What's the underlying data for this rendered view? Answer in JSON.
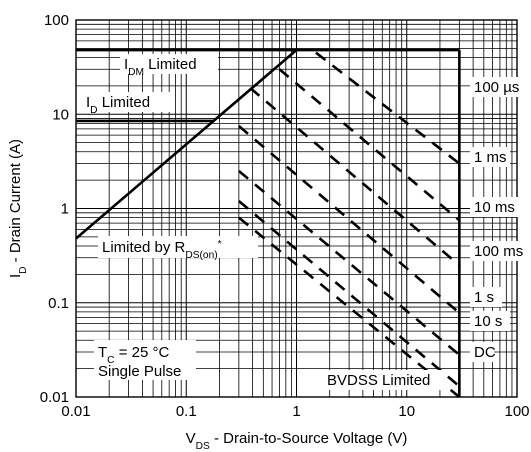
{
  "chart_data": {
    "type": "line",
    "title": "",
    "xlabel": "V<sub>DS</sub> - Drain-to-Source Voltage (V)",
    "xlabel_parts": [
      {
        "text": "V",
        "sub": false
      },
      {
        "text": "DS",
        "sub": true
      },
      {
        "text": " - Drain-to-Source Voltage (V)",
        "sub": false
      }
    ],
    "ylabel_parts": [
      {
        "text": "I",
        "sub": false
      },
      {
        "text": "D",
        "sub": true
      },
      {
        "text": " - Drain Current (A)",
        "sub": false
      }
    ],
    "x_scale": "log",
    "y_scale": "log",
    "xlim": [
      0.01,
      100
    ],
    "ylim": [
      0.01,
      100
    ],
    "x_ticks": [
      "0.01",
      "0.1",
      "1",
      "10",
      "100"
    ],
    "y_ticks": [
      "0.01",
      "0.1",
      "1",
      "10",
      "100"
    ],
    "grid": true,
    "boundary_series": [
      {
        "id": "rds-on",
        "points": [
          [
            0.01,
            0.48
          ],
          [
            1.0,
            48
          ]
        ]
      },
      {
        "id": "idm",
        "points": [
          [
            0.01,
            48
          ],
          [
            30,
            48
          ]
        ]
      },
      {
        "id": "id",
        "points": [
          [
            0.01,
            8.5
          ],
          [
            0.18,
            8.5
          ]
        ]
      },
      {
        "id": "bvdss",
        "points": [
          [
            30,
            48
          ],
          [
            30,
            0.01
          ]
        ]
      }
    ],
    "pulse_series": [
      {
        "id": "100us",
        "points": [
          [
            1.5,
            45
          ],
          [
            30,
            3.0
          ]
        ]
      },
      {
        "id": "1ms",
        "points": [
          [
            0.7,
            30
          ],
          [
            30,
            0.75
          ]
        ]
      },
      {
        "id": "10ms",
        "points": [
          [
            0.38,
            19
          ],
          [
            30,
            0.25
          ]
        ]
      },
      {
        "id": "100ms",
        "points": [
          [
            0.3,
            7.5
          ],
          [
            30,
            0.078
          ]
        ]
      },
      {
        "id": "1s",
        "points": [
          [
            0.3,
            2.5
          ],
          [
            30,
            0.028
          ]
        ]
      },
      {
        "id": "10s",
        "points": [
          [
            0.3,
            1.2
          ],
          [
            30,
            0.013
          ]
        ]
      },
      {
        "id": "dc",
        "points": [
          [
            0.3,
            0.8
          ],
          [
            30,
            0.01
          ]
        ]
      }
    ],
    "annotations": [
      {
        "id": "idm",
        "parts": [
          {
            "text": "I",
            "sub": false
          },
          {
            "text": "DM",
            "sub": true
          },
          {
            "text": " Limited",
            "sub": false
          }
        ]
      },
      {
        "id": "id",
        "parts": [
          {
            "text": "I",
            "sub": false
          },
          {
            "text": "D",
            "sub": true
          },
          {
            "text": " Limited",
            "sub": false
          }
        ]
      },
      {
        "id": "rds",
        "parts": [
          {
            "text": "Limited by R",
            "sub": false
          },
          {
            "text": "DS(on)",
            "sub": true
          },
          {
            "text": "*",
            "sup": true
          }
        ]
      },
      {
        "id": "tc",
        "parts": [
          {
            "text": "T",
            "sub": false
          },
          {
            "text": "C",
            "sub": true
          },
          {
            "text": " = 25 °C",
            "sub": false
          }
        ]
      },
      {
        "id": "single",
        "parts": [
          {
            "text": "Single Pulse",
            "sub": false
          }
        ]
      },
      {
        "id": "bvdss",
        "parts": [
          {
            "text": "BVDSS Limited",
            "sub": false
          }
        ]
      }
    ],
    "pulse_labels": [
      "100 µs",
      "1 ms",
      "10 ms",
      "100 ms",
      "1 s",
      "10 s",
      "DC"
    ]
  }
}
